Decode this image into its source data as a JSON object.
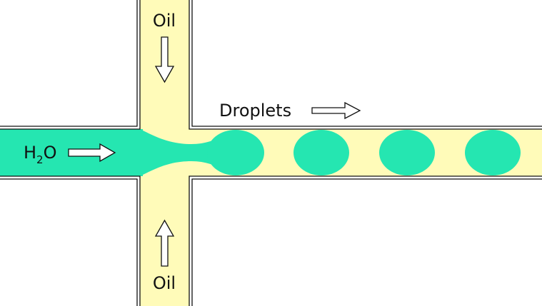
{
  "labels": {
    "oil_top": "Oil",
    "oil_bottom": "Oil",
    "water_main": "H",
    "water_sub": "2",
    "water_tail": "O",
    "droplets": "Droplets"
  },
  "icons": {
    "oil_top_arrow": "arrow-down-icon",
    "oil_bottom_arrow": "arrow-up-icon",
    "water_arrow": "arrow-right-icon",
    "droplets_arrow": "arrow-right-icon"
  },
  "colors": {
    "oil": "#fffbb9",
    "water": "#25e6b1",
    "wall": "#111111",
    "background": "#ffffff"
  },
  "droplet_count": 4
}
